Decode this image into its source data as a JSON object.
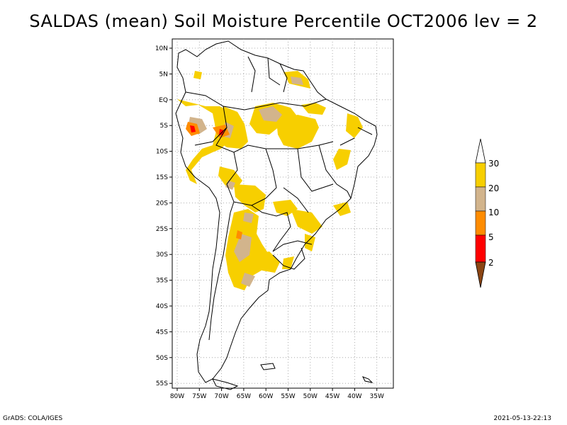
{
  "title": "SALDAS (mean) Soil Moisture Percentile OCT2006 lev = 2",
  "footer": {
    "left": "GrADS: COLA/IGES",
    "right": "2021-05-13-22:13"
  },
  "lat_ticks": [
    "10N",
    "5N",
    "EQ",
    "5S",
    "10S",
    "15S",
    "20S",
    "25S",
    "30S",
    "35S",
    "40S",
    "45S",
    "50S",
    "55S"
  ],
  "lon_ticks": [
    "80W",
    "75W",
    "70W",
    "65W",
    "60W",
    "55W",
    "50W",
    "45W",
    "40W",
    "35W"
  ],
  "colorbar": {
    "labels": [
      "30",
      "20",
      "10",
      "5",
      "2"
    ],
    "colors": {
      "above30": "#ffffff",
      "c20_30": "#f7cf00",
      "c10_20": "#d2b48c",
      "c5_10": "#ff8c00",
      "c2_5": "#ff0000",
      "below2": "#8b4513"
    }
  },
  "map_extent": {
    "lon_min": -80,
    "lon_max": -33,
    "lat_min": -56,
    "lat_max": 11
  }
}
